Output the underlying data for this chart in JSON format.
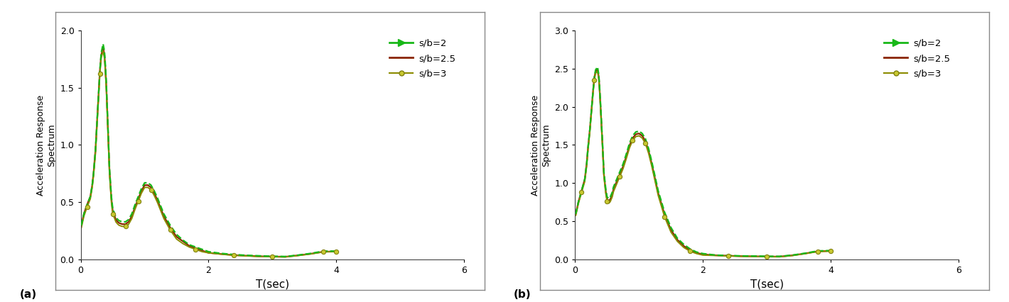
{
  "subplot_a": {
    "label": "(a)",
    "ylim": [
      0,
      2
    ],
    "yticks": [
      0,
      0.5,
      1,
      1.5,
      2
    ],
    "xlim": [
      0,
      6
    ],
    "xticks": [
      0,
      2,
      4,
      6
    ],
    "xlabel": "T(sec)",
    "ylabel": "Acceleration Response\nSpectrum"
  },
  "subplot_b": {
    "label": "(b)",
    "ylim": [
      0,
      3
    ],
    "yticks": [
      0,
      0.5,
      1,
      1.5,
      2,
      2.5,
      3
    ],
    "xlim": [
      0,
      6
    ],
    "xticks": [
      0,
      2,
      4,
      6
    ],
    "xlabel": "T(sec)",
    "ylabel": "Acceleration Response\nSpectrum"
  },
  "series": [
    {
      "label": "s/b=2",
      "color": "#18b818",
      "style": "dashed",
      "marker": null,
      "lw": 1.6
    },
    {
      "label": "s/b=2.5",
      "color": "#8b2500",
      "style": "solid",
      "marker": null,
      "lw": 1.6
    },
    {
      "label": "s/b=3",
      "color": "#8b8b00",
      "style": "solid",
      "marker": "o",
      "lw": 1.4
    }
  ],
  "T": [
    0.01,
    0.05,
    0.1,
    0.15,
    0.18,
    0.2,
    0.23,
    0.25,
    0.28,
    0.3,
    0.32,
    0.35,
    0.37,
    0.38,
    0.4,
    0.43,
    0.45,
    0.48,
    0.5,
    0.53,
    0.55,
    0.58,
    0.6,
    0.65,
    0.7,
    0.75,
    0.8,
    0.85,
    0.9,
    0.95,
    1.0,
    1.05,
    1.1,
    1.15,
    1.2,
    1.3,
    1.4,
    1.5,
    1.6,
    1.7,
    1.8,
    1.9,
    2.0,
    2.2,
    2.4,
    2.6,
    2.8,
    3.0,
    3.2,
    3.4,
    3.6,
    3.8,
    4.0
  ],
  "a_sb2": [
    0.3,
    0.4,
    0.48,
    0.55,
    0.65,
    0.75,
    0.95,
    1.15,
    1.45,
    1.65,
    1.8,
    1.88,
    1.82,
    1.75,
    1.55,
    1.1,
    0.8,
    0.55,
    0.45,
    0.4,
    0.37,
    0.35,
    0.34,
    0.33,
    0.33,
    0.35,
    0.4,
    0.48,
    0.55,
    0.62,
    0.67,
    0.67,
    0.65,
    0.6,
    0.54,
    0.4,
    0.3,
    0.22,
    0.17,
    0.13,
    0.11,
    0.09,
    0.07,
    0.055,
    0.045,
    0.038,
    0.034,
    0.03,
    0.028,
    0.04,
    0.055,
    0.075,
    0.075
  ],
  "a_sb25": [
    0.3,
    0.4,
    0.48,
    0.55,
    0.65,
    0.75,
    0.95,
    1.15,
    1.45,
    1.65,
    1.78,
    1.85,
    1.79,
    1.72,
    1.52,
    1.08,
    0.78,
    0.53,
    0.43,
    0.38,
    0.35,
    0.33,
    0.32,
    0.31,
    0.31,
    0.33,
    0.38,
    0.46,
    0.53,
    0.6,
    0.65,
    0.65,
    0.63,
    0.58,
    0.52,
    0.38,
    0.28,
    0.2,
    0.16,
    0.12,
    0.1,
    0.08,
    0.06,
    0.05,
    0.04,
    0.035,
    0.03,
    0.028,
    0.026,
    0.038,
    0.052,
    0.07,
    0.072
  ],
  "a_sb3": [
    0.28,
    0.38,
    0.46,
    0.53,
    0.63,
    0.73,
    0.92,
    1.12,
    1.42,
    1.62,
    1.76,
    1.82,
    1.76,
    1.69,
    1.49,
    1.05,
    0.75,
    0.5,
    0.4,
    0.36,
    0.33,
    0.31,
    0.3,
    0.29,
    0.29,
    0.31,
    0.36,
    0.44,
    0.51,
    0.58,
    0.63,
    0.63,
    0.61,
    0.56,
    0.5,
    0.36,
    0.26,
    0.18,
    0.14,
    0.11,
    0.09,
    0.07,
    0.06,
    0.048,
    0.038,
    0.033,
    0.028,
    0.026,
    0.024,
    0.036,
    0.05,
    0.068,
    0.07
  ],
  "b_sb2": [
    0.6,
    0.75,
    0.9,
    1.05,
    1.25,
    1.45,
    1.7,
    1.9,
    2.2,
    2.38,
    2.48,
    2.52,
    2.42,
    2.3,
    2.0,
    1.5,
    1.15,
    0.92,
    0.82,
    0.8,
    0.82,
    0.88,
    0.95,
    1.05,
    1.15,
    1.25,
    1.38,
    1.52,
    1.62,
    1.67,
    1.68,
    1.65,
    1.58,
    1.45,
    1.28,
    0.9,
    0.62,
    0.42,
    0.28,
    0.2,
    0.14,
    0.1,
    0.08,
    0.06,
    0.055,
    0.05,
    0.048,
    0.045,
    0.044,
    0.06,
    0.085,
    0.115,
    0.12
  ],
  "b_sb25": [
    0.6,
    0.75,
    0.9,
    1.05,
    1.25,
    1.45,
    1.7,
    1.9,
    2.2,
    2.38,
    2.46,
    2.49,
    2.39,
    2.27,
    1.97,
    1.47,
    1.12,
    0.89,
    0.79,
    0.77,
    0.79,
    0.85,
    0.92,
    1.02,
    1.12,
    1.22,
    1.35,
    1.49,
    1.59,
    1.64,
    1.65,
    1.62,
    1.55,
    1.42,
    1.25,
    0.87,
    0.59,
    0.39,
    0.26,
    0.18,
    0.12,
    0.09,
    0.07,
    0.058,
    0.052,
    0.047,
    0.045,
    0.042,
    0.041,
    0.057,
    0.082,
    0.11,
    0.115
  ],
  "b_sb3": [
    0.58,
    0.73,
    0.88,
    1.02,
    1.22,
    1.42,
    1.67,
    1.87,
    2.17,
    2.35,
    2.44,
    2.46,
    2.36,
    2.24,
    1.94,
    1.44,
    1.09,
    0.86,
    0.76,
    0.74,
    0.76,
    0.82,
    0.89,
    0.99,
    1.09,
    1.19,
    1.32,
    1.46,
    1.56,
    1.61,
    1.62,
    1.59,
    1.52,
    1.39,
    1.22,
    0.84,
    0.56,
    0.36,
    0.24,
    0.16,
    0.11,
    0.08,
    0.06,
    0.055,
    0.049,
    0.044,
    0.042,
    0.039,
    0.038,
    0.054,
    0.079,
    0.107,
    0.112
  ],
  "marker_T": [
    0.1,
    0.3,
    0.5,
    0.7,
    0.9,
    1.1,
    1.4,
    1.8,
    2.4,
    3.0,
    3.8,
    4.0
  ],
  "sb3_marker_color_face": "#c8c830",
  "sb3_marker_color_edge": "#808010",
  "background_color": "#ffffff",
  "outer_bg": "#f2f2f2",
  "box_color": "#cccccc"
}
